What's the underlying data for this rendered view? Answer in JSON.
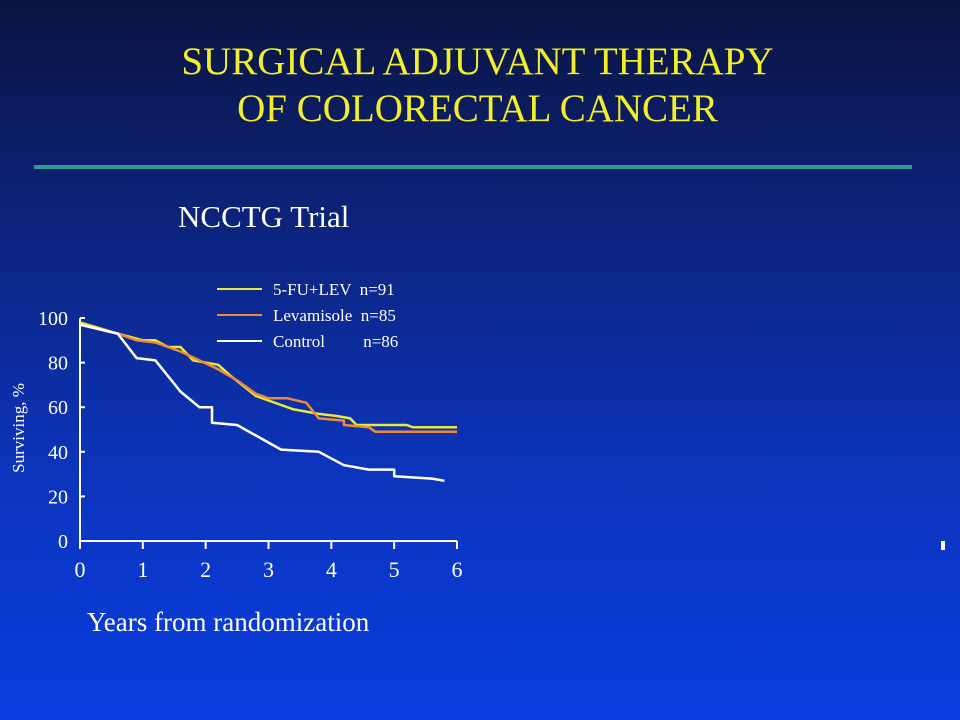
{
  "slide": {
    "title_line1": "SURGICAL ADJUVANT THERAPY",
    "title_line2": "OF COLORECTAL CANCER",
    "subtitle": "NCCTG Trial"
  },
  "chart_data": {
    "type": "line",
    "title": "NCCTG Trial",
    "xlabel": "Years from randomization",
    "ylabel": "Surviving, %",
    "xlim": [
      0,
      6
    ],
    "ylim": [
      0,
      100
    ],
    "x_ticks": [
      0,
      1,
      2,
      3,
      4,
      5,
      6
    ],
    "y_ticks": [
      0,
      20,
      40,
      60,
      80,
      100
    ],
    "grid": false,
    "legend_position": "top",
    "series": [
      {
        "name": "5-FU+LEV  n=91",
        "color": "#e6ea3a",
        "points": [
          [
            0,
            98
          ],
          [
            0.6,
            93
          ],
          [
            1.0,
            90
          ],
          [
            1.2,
            90
          ],
          [
            1.4,
            87
          ],
          [
            1.6,
            87
          ],
          [
            1.8,
            81
          ],
          [
            2.2,
            79
          ],
          [
            2.4,
            74
          ],
          [
            2.8,
            65
          ],
          [
            3.2,
            61
          ],
          [
            3.4,
            59
          ],
          [
            3.8,
            57
          ],
          [
            4.1,
            56
          ],
          [
            4.3,
            55
          ],
          [
            4.4,
            52
          ],
          [
            4.7,
            52
          ],
          [
            5.2,
            52
          ],
          [
            5.3,
            51
          ],
          [
            5.6,
            51
          ],
          [
            6.0,
            51
          ]
        ]
      },
      {
        "name": "Levamisole  n=85",
        "color": "#f08a38",
        "points": [
          [
            0,
            97
          ],
          [
            0.6,
            93
          ],
          [
            0.9,
            90
          ],
          [
            1.2,
            89
          ],
          [
            1.6,
            85
          ],
          [
            1.9,
            81
          ],
          [
            2.2,
            77
          ],
          [
            2.5,
            72
          ],
          [
            2.8,
            66
          ],
          [
            3.0,
            64
          ],
          [
            3.3,
            64
          ],
          [
            3.6,
            62
          ],
          [
            3.8,
            55
          ],
          [
            4.2,
            54
          ],
          [
            4.2,
            52
          ],
          [
            4.6,
            51
          ],
          [
            4.7,
            49
          ],
          [
            5.2,
            49
          ],
          [
            6.0,
            49
          ]
        ]
      },
      {
        "name": "Control         n=86",
        "color": "#ffffff",
        "points": [
          [
            0,
            97
          ],
          [
            0.6,
            93
          ],
          [
            0.9,
            82
          ],
          [
            1.2,
            81
          ],
          [
            1.6,
            67
          ],
          [
            1.9,
            60
          ],
          [
            2.1,
            60
          ],
          [
            2.1,
            53
          ],
          [
            2.5,
            52
          ],
          [
            3.2,
            41
          ],
          [
            3.8,
            40
          ],
          [
            4.2,
            34
          ],
          [
            4.6,
            32
          ],
          [
            5.0,
            32
          ],
          [
            5.0,
            29
          ],
          [
            5.6,
            28
          ],
          [
            5.6,
            28
          ],
          [
            5.8,
            27
          ]
        ]
      }
    ]
  }
}
